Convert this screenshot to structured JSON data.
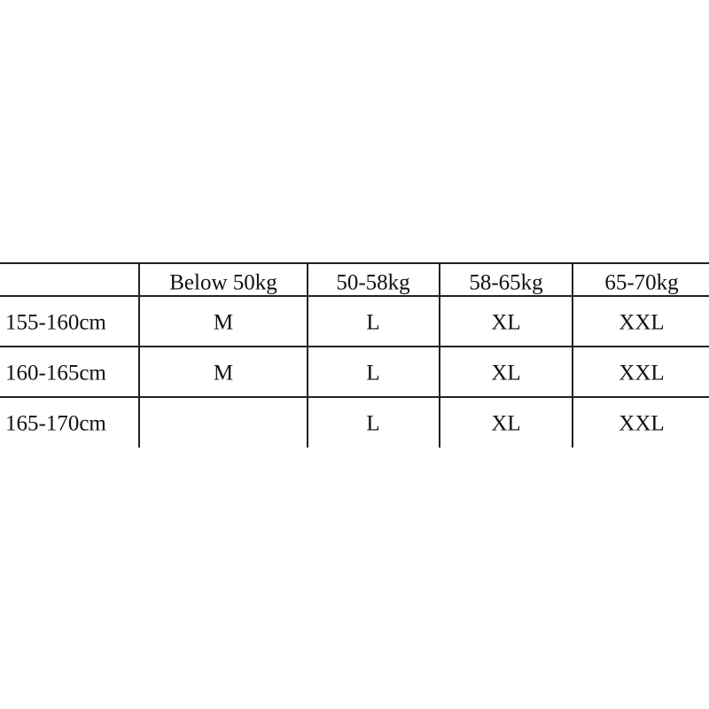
{
  "size_chart": {
    "columns": [
      "",
      "Below 50kg",
      "50-58kg",
      "58-65kg",
      "65-70kg"
    ],
    "rows": [
      {
        "height": "155-160cm",
        "sizes": [
          "M",
          "L",
          "XL",
          "XXL"
        ]
      },
      {
        "height": "160-165cm",
        "sizes": [
          "M",
          "L",
          "XL",
          "XXL"
        ]
      },
      {
        "height": "165-170cm",
        "sizes": [
          "",
          "L",
          "XL",
          "XXL"
        ]
      }
    ]
  }
}
